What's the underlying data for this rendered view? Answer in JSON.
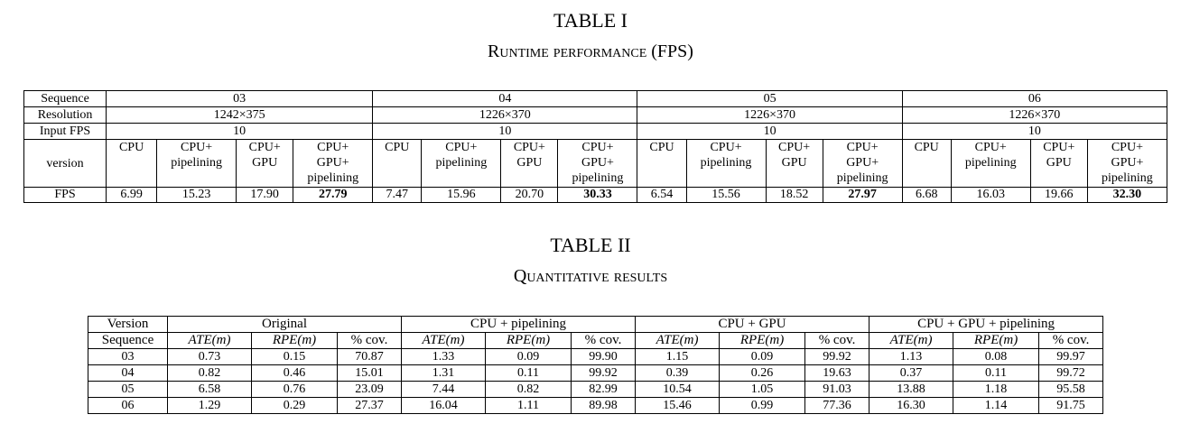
{
  "table1": {
    "number": "TABLE I",
    "title": "Runtime performance (FPS)",
    "row_labels": {
      "sequence": "Sequence",
      "resolution": "Resolution",
      "input_fps": "Input FPS",
      "version": "version",
      "fps": "FPS"
    },
    "groups": [
      {
        "sequence": "03",
        "resolution": "1242×375",
        "input_fps": "10"
      },
      {
        "sequence": "04",
        "resolution": "1226×370",
        "input_fps": "10"
      },
      {
        "sequence": "05",
        "resolution": "1226×370",
        "input_fps": "10"
      },
      {
        "sequence": "06",
        "resolution": "1226×370",
        "input_fps": "10"
      }
    ],
    "versions": [
      [
        "CPU"
      ],
      [
        "CPU+",
        "pipelining"
      ],
      [
        "CPU+",
        "GPU"
      ],
      [
        "CPU+",
        "GPU+",
        "pipelining"
      ]
    ],
    "fps": [
      [
        "6.99",
        "15.23",
        "17.90",
        "27.79"
      ],
      [
        "7.47",
        "15.96",
        "20.70",
        "30.33"
      ],
      [
        "6.54",
        "15.56",
        "18.52",
        "27.97"
      ],
      [
        "6.68",
        "16.03",
        "19.66",
        "32.30"
      ]
    ]
  },
  "table2": {
    "number": "TABLE II",
    "title": "Quantitative results",
    "corner_top": "Version",
    "corner_bottom": "Sequence",
    "groups": [
      "Original",
      "CPU + pipelining",
      "CPU + GPU",
      "CPU + GPU + pipelining"
    ],
    "metrics": [
      "ATE(m)",
      "RPE(m)",
      "% cov."
    ],
    "rows": [
      {
        "sequence": "03",
        "values": [
          "0.73",
          "0.15",
          "70.87",
          "1.33",
          "0.09",
          "99.90",
          "1.15",
          "0.09",
          "99.92",
          "1.13",
          "0.08",
          "99.97"
        ]
      },
      {
        "sequence": "04",
        "values": [
          "0.82",
          "0.46",
          "15.01",
          "1.31",
          "0.11",
          "99.92",
          "0.39",
          "0.26",
          "19.63",
          "0.37",
          "0.11",
          "99.72"
        ]
      },
      {
        "sequence": "05",
        "values": [
          "6.58",
          "0.76",
          "23.09",
          "7.44",
          "0.82",
          "82.99",
          "10.54",
          "1.05",
          "91.03",
          "13.88",
          "1.18",
          "95.58"
        ]
      },
      {
        "sequence": "06",
        "values": [
          "1.29",
          "0.29",
          "27.37",
          "16.04",
          "1.11",
          "89.98",
          "15.46",
          "0.99",
          "77.36",
          "16.30",
          "1.14",
          "91.75"
        ]
      }
    ]
  }
}
